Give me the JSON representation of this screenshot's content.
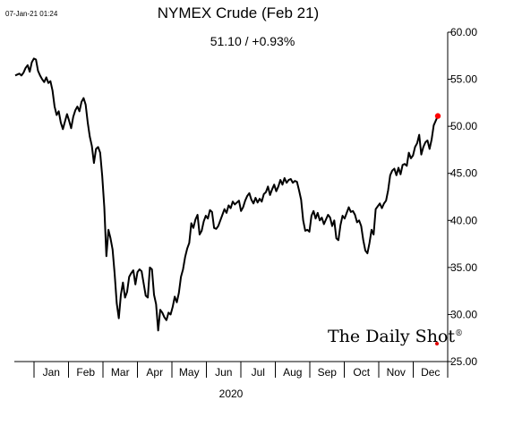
{
  "chart_data": {
    "type": "line",
    "title": "NYMEX Crude (Feb 21)",
    "subtitle": "51.10  /  +0.93%",
    "timestamp": "07-Jan-21 01:24",
    "xlabel": "2020",
    "brand": "The Daily Shot",
    "brand_mark": "®",
    "y_axis": {
      "min": 25,
      "max": 60,
      "ticks": [
        "25.00",
        "30.00",
        "35.00",
        "40.00",
        "45.00",
        "50.00",
        "55.00",
        "60.00"
      ],
      "position": "right"
    },
    "x_axis": {
      "months": [
        "Jan",
        "Feb",
        "Mar",
        "Apr",
        "May",
        "Jun",
        "Jul",
        "Aug",
        "Sep",
        "Oct",
        "Nov",
        "Dec"
      ]
    },
    "grid": false,
    "line_color": "#000000",
    "last_point_color": "#ff0000",
    "series": [
      {
        "values": [
          55.4,
          55.5,
          55.6,
          55.4,
          55.7,
          56.2,
          56.5,
          55.8,
          56.8,
          57.2,
          57.1,
          55.9,
          55.4,
          55.0,
          54.7,
          55.2,
          54.6,
          54.8,
          53.8,
          52.1,
          51.2,
          51.6,
          50.4,
          49.7,
          50.5,
          51.3,
          50.6,
          49.8,
          51.0,
          51.7,
          52.1,
          51.6,
          52.6,
          53.0,
          52.3,
          50.4,
          48.9,
          47.9,
          46.1,
          47.6,
          47.8,
          47.2,
          44.7,
          41.4,
          36.2,
          39.0,
          38.1,
          36.9,
          34.3,
          31.2,
          29.6,
          32.1,
          33.4,
          31.8,
          32.4,
          34.0,
          34.4,
          34.7,
          33.2,
          34.5,
          34.8,
          34.6,
          33.3,
          32.0,
          31.8,
          35.0,
          34.8,
          32.1,
          31.1,
          28.3,
          30.5,
          30.2,
          29.7,
          29.4,
          30.2,
          30.0,
          30.8,
          31.9,
          31.3,
          32.3,
          34.0,
          34.8,
          36.1,
          37.0,
          37.6,
          39.7,
          39.2,
          40.1,
          40.6,
          38.5,
          38.9,
          39.9,
          40.5,
          40.2,
          41.1,
          40.9,
          39.2,
          39.1,
          39.4,
          40.0,
          40.6,
          41.2,
          40.8,
          41.6,
          41.3,
          42.0,
          41.7,
          41.9,
          42.1,
          41.0,
          41.4,
          42.1,
          42.6,
          42.9,
          42.2,
          41.8,
          42.4,
          41.9,
          42.3,
          42.0,
          42.8,
          43.0,
          43.6,
          42.7,
          43.3,
          43.8,
          43.1,
          43.6,
          44.3,
          43.8,
          44.5,
          44.0,
          44.3,
          44.4,
          44.0,
          44.2,
          44.1,
          43.2,
          42.2,
          40.0,
          38.9,
          39.0,
          38.8,
          40.5,
          41.0,
          40.2,
          40.8,
          40.0,
          40.3,
          39.6,
          40.1,
          40.6,
          40.3,
          39.4,
          40.0,
          38.1,
          37.9,
          39.5,
          40.5,
          40.2,
          40.8,
          41.4,
          40.9,
          41.0,
          40.6,
          39.8,
          40.0,
          39.4,
          37.9,
          36.8,
          36.5,
          37.6,
          39.0,
          38.5,
          41.2,
          41.5,
          41.8,
          41.3,
          41.8,
          42.1,
          43.2,
          44.8,
          45.3,
          45.5,
          44.8,
          45.6,
          44.9,
          45.9,
          46.0,
          45.8,
          47.2,
          46.6,
          46.9,
          47.8,
          48.2,
          49.1,
          47.0,
          47.8,
          48.3,
          48.5,
          47.6,
          48.6,
          50.1,
          50.6,
          51.1
        ]
      }
    ]
  }
}
